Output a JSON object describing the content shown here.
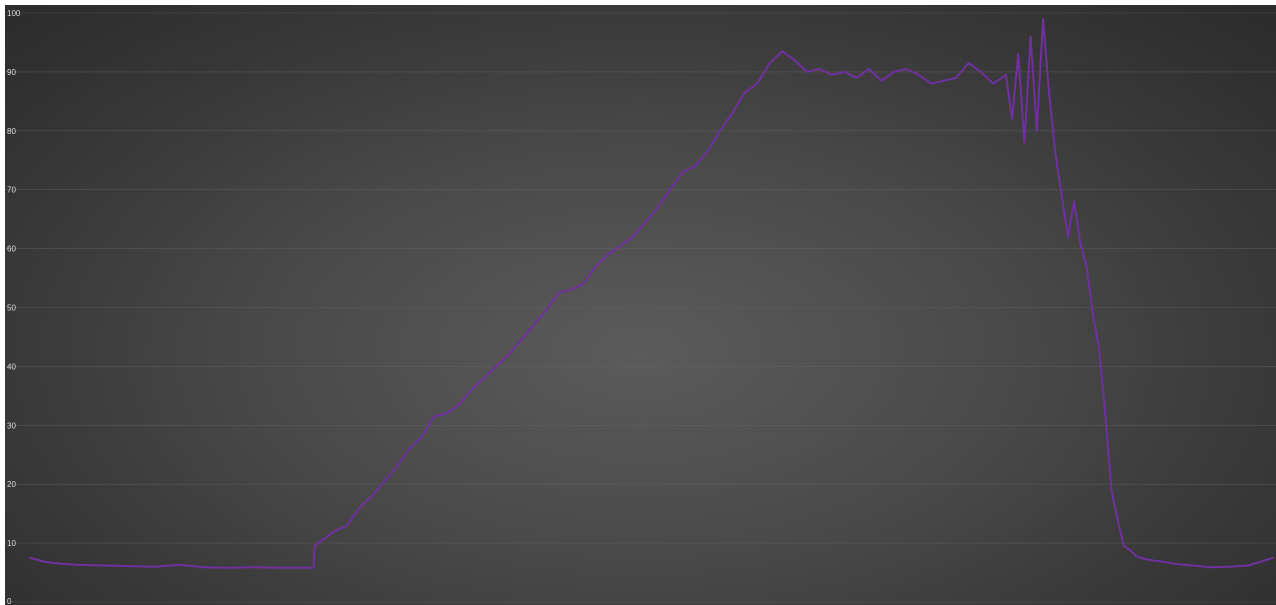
{
  "chart_data": {
    "type": "line",
    "title": "",
    "xlabel": "",
    "ylabel": "",
    "ylim": [
      0,
      100
    ],
    "yticks": [
      0,
      10,
      20,
      30,
      40,
      50,
      60,
      70,
      80,
      90,
      100
    ],
    "ytick_labels": [
      "0",
      "10",
      "20",
      "30",
      "40",
      "50",
      "60",
      "70",
      "80",
      "90",
      "100"
    ],
    "xlim": [
      0,
      1000
    ],
    "grid": true,
    "legend": "none",
    "colors": {
      "background": "#474747",
      "line": "#7030a0",
      "tick_text": "#d9d9d9",
      "grid": "#6b6b6b"
    },
    "series": [
      {
        "x": [
          0,
          12,
          25,
          40,
          60,
          80,
          100,
          120,
          140,
          160,
          180,
          200,
          220,
          228,
          229,
          235,
          245,
          255,
          265,
          275,
          285,
          295,
          305,
          315,
          325,
          335,
          345,
          355,
          365,
          375,
          385,
          395,
          405,
          415,
          425,
          435,
          445,
          455,
          465,
          475,
          485,
          495,
          505,
          515,
          525,
          535,
          545,
          555,
          565,
          575,
          585,
          595,
          605,
          615,
          625,
          635,
          645,
          655,
          665,
          675,
          685,
          695,
          705,
          715,
          725,
          735,
          745,
          755,
          765,
          775,
          785,
          790,
          795,
          800,
          805,
          810,
          815,
          820,
          825,
          830,
          835,
          840,
          845,
          850,
          855,
          860,
          865,
          870,
          875,
          880,
          885,
          890,
          895,
          900,
          905,
          910,
          920,
          935,
          950,
          965,
          980,
          1000
        ],
        "values": [
          7.5,
          6.8,
          6.5,
          6.3,
          6.2,
          6.1,
          6.0,
          6.3,
          5.9,
          5.8,
          5.9,
          5.8,
          5.8,
          5.8,
          9.5,
          10.5,
          12.0,
          13.0,
          16.0,
          18.0,
          20.5,
          23.0,
          26.0,
          28.0,
          31.5,
          32.0,
          33.5,
          36.0,
          38.0,
          40.0,
          42.0,
          44.5,
          47.0,
          49.5,
          52.5,
          53.0,
          54.0,
          57.0,
          59.0,
          60.5,
          62.0,
          64.5,
          67.0,
          70.0,
          73.0,
          74.0,
          76.5,
          80.0,
          83.0,
          86.5,
          88.0,
          91.5,
          93.5,
          92.0,
          90.0,
          90.5,
          89.5,
          90.0,
          89.0,
          90.5,
          88.5,
          90.0,
          90.5,
          89.5,
          88.0,
          88.5,
          89.0,
          91.5,
          90.0,
          88.0,
          89.5,
          82.0,
          93.0,
          78.0,
          96.0,
          80.0,
          99.0,
          86.0,
          76.0,
          69.0,
          62.0,
          68.0,
          61.0,
          57.0,
          49.0,
          43.0,
          32.0,
          19.0,
          14.0,
          9.5,
          8.8,
          7.8,
          7.4,
          7.2,
          7.0,
          6.9,
          6.5,
          6.2,
          5.9,
          6.0,
          6.2,
          7.5
        ]
      }
    ]
  }
}
